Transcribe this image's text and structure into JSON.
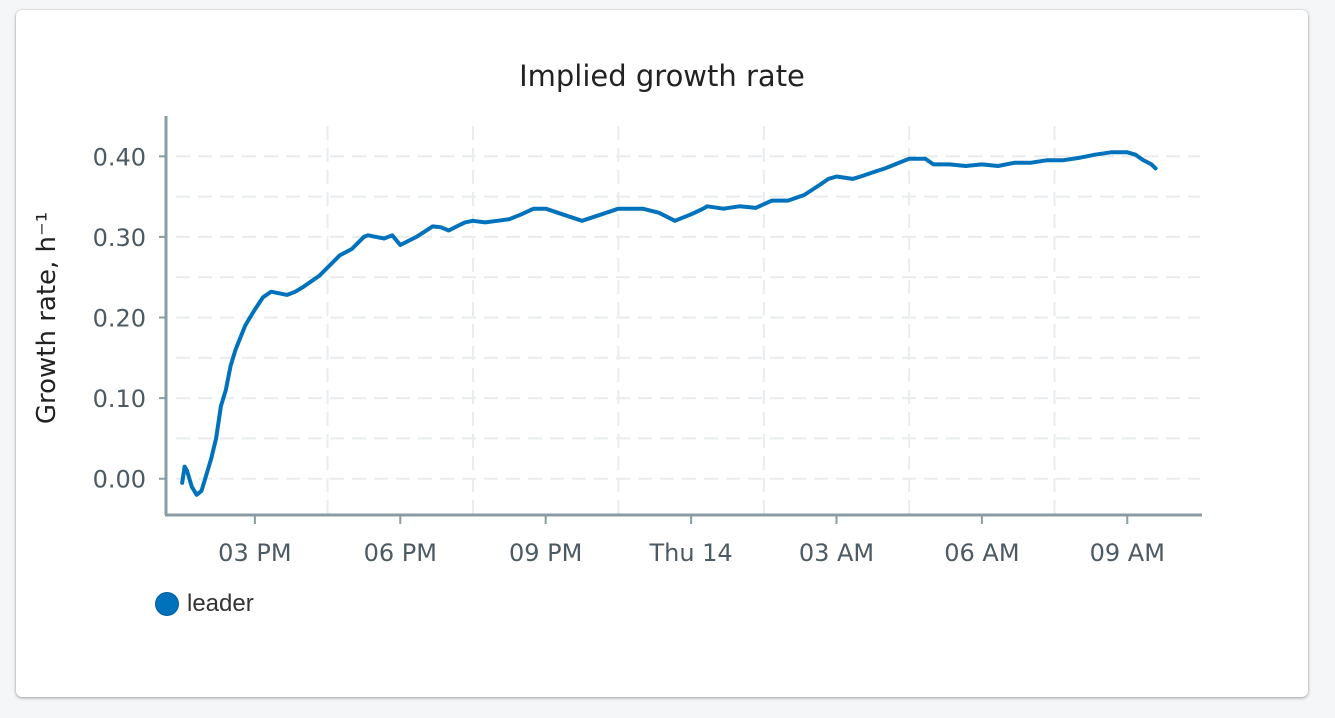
{
  "card": {
    "title": "Implied growth rate"
  },
  "chart_data": {
    "type": "line",
    "title": "Implied growth rate",
    "xlabel": "",
    "ylabel": "Growth rate, h⁻¹",
    "x_is_time": true,
    "x_tick_labels": [
      "03 PM",
      "06 PM",
      "09 PM",
      "Thu 14",
      "03 AM",
      "06 AM",
      "09 AM"
    ],
    "x_ticks": [
      "2024-03-13T15:00",
      "2024-03-13T18:00",
      "2024-03-13T21:00",
      "2024-03-14T00:00",
      "2024-03-14T03:00",
      "2024-03-14T06:00",
      "2024-03-14T09:00"
    ],
    "xlim": [
      "2024-03-13T13:10",
      "2024-03-14T10:30"
    ],
    "ylim": [
      -0.045,
      0.45
    ],
    "y_ticks": [
      0.0,
      0.1,
      0.2,
      0.3,
      0.4
    ],
    "y_tick_labels": [
      "0.00",
      "0.10",
      "0.20",
      "0.30",
      "0.40"
    ],
    "grid": true,
    "legend_position": "bottom-left",
    "series": [
      {
        "name": "leader",
        "color": "#0072bb",
        "x": [
          "2024-03-13T13:30",
          "2024-03-13T13:33",
          "2024-03-13T13:36",
          "2024-03-13T13:42",
          "2024-03-13T13:48",
          "2024-03-13T13:54",
          "2024-03-13T14:00",
          "2024-03-13T14:06",
          "2024-03-13T14:12",
          "2024-03-13T14:18",
          "2024-03-13T14:24",
          "2024-03-13T14:30",
          "2024-03-13T14:36",
          "2024-03-13T14:42",
          "2024-03-13T14:48",
          "2024-03-13T14:54",
          "2024-03-13T15:00",
          "2024-03-13T15:10",
          "2024-03-13T15:20",
          "2024-03-13T15:30",
          "2024-03-13T15:40",
          "2024-03-13T15:50",
          "2024-03-13T16:00",
          "2024-03-13T16:10",
          "2024-03-13T16:20",
          "2024-03-13T16:30",
          "2024-03-13T16:45",
          "2024-03-13T17:00",
          "2024-03-13T17:10",
          "2024-03-13T17:15",
          "2024-03-13T17:20",
          "2024-03-13T17:30",
          "2024-03-13T17:40",
          "2024-03-13T17:50",
          "2024-03-13T18:00",
          "2024-03-13T18:20",
          "2024-03-13T18:40",
          "2024-03-13T18:50",
          "2024-03-13T19:00",
          "2024-03-13T19:10",
          "2024-03-13T19:20",
          "2024-03-13T19:30",
          "2024-03-13T19:45",
          "2024-03-13T20:00",
          "2024-03-13T20:15",
          "2024-03-13T20:30",
          "2024-03-13T20:45",
          "2024-03-13T21:00",
          "2024-03-13T21:30",
          "2024-03-13T21:45",
          "2024-03-13T22:00",
          "2024-03-13T22:30",
          "2024-03-13T23:00",
          "2024-03-13T23:20",
          "2024-03-13T23:40",
          "2024-03-14T00:00",
          "2024-03-14T00:15",
          "2024-03-14T00:20",
          "2024-03-14T00:40",
          "2024-03-14T01:00",
          "2024-03-14T01:20",
          "2024-03-14T01:40",
          "2024-03-14T02:00",
          "2024-03-14T02:20",
          "2024-03-14T02:40",
          "2024-03-14T02:50",
          "2024-03-14T03:00",
          "2024-03-14T03:20",
          "2024-03-14T03:30",
          "2024-03-14T03:45",
          "2024-03-14T04:00",
          "2024-03-14T04:30",
          "2024-03-14T04:50",
          "2024-03-14T05:00",
          "2024-03-14T05:20",
          "2024-03-14T05:40",
          "2024-03-14T06:00",
          "2024-03-14T06:20",
          "2024-03-14T06:40",
          "2024-03-14T07:00",
          "2024-03-14T07:20",
          "2024-03-14T07:40",
          "2024-03-14T08:00",
          "2024-03-14T08:20",
          "2024-03-14T08:40",
          "2024-03-14T09:00",
          "2024-03-14T09:10",
          "2024-03-14T09:20",
          "2024-03-14T09:30",
          "2024-03-14T09:35"
        ],
        "values": [
          -0.005,
          0.015,
          0.01,
          -0.01,
          -0.02,
          -0.015,
          0.005,
          0.025,
          0.05,
          0.09,
          0.11,
          0.14,
          0.16,
          0.175,
          0.19,
          0.2,
          0.21,
          0.225,
          0.232,
          0.23,
          0.228,
          0.232,
          0.238,
          0.245,
          0.252,
          0.262,
          0.277,
          0.285,
          0.295,
          0.3,
          0.302,
          0.3,
          0.298,
          0.302,
          0.29,
          0.3,
          0.313,
          0.312,
          0.308,
          0.313,
          0.318,
          0.32,
          0.318,
          0.32,
          0.322,
          0.328,
          0.335,
          0.335,
          0.325,
          0.32,
          0.325,
          0.335,
          0.335,
          0.33,
          0.32,
          0.328,
          0.335,
          0.338,
          0.335,
          0.338,
          0.336,
          0.345,
          0.345,
          0.352,
          0.365,
          0.372,
          0.375,
          0.372,
          0.375,
          0.38,
          0.385,
          0.397,
          0.397,
          0.39,
          0.39,
          0.388,
          0.39,
          0.388,
          0.392,
          0.392,
          0.395,
          0.395,
          0.398,
          0.402,
          0.405,
          0.405,
          0.402,
          0.395,
          0.39,
          0.385
        ]
      }
    ]
  },
  "legend": {
    "items": [
      {
        "label": "leader",
        "color": "#0072bb"
      }
    ]
  }
}
